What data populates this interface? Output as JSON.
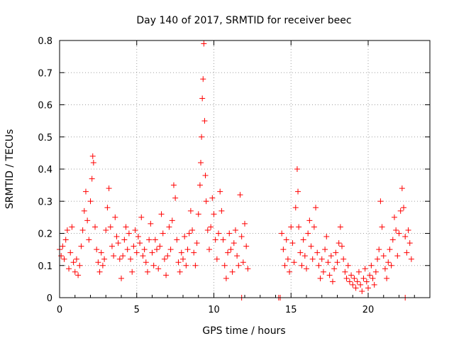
{
  "chart_data": {
    "type": "scatter",
    "title": "Day 140 of 2017, SRMTID for receiver beec",
    "xlabel": "GPS time / hours",
    "ylabel": "SRMTID / TECUs",
    "xlim": [
      0,
      24
    ],
    "ylim": [
      0,
      0.8
    ],
    "x_ticks": [
      0,
      5,
      10,
      15,
      20
    ],
    "y_ticks": [
      0,
      0.1,
      0.2,
      0.3,
      0.4,
      0.5,
      0.6,
      0.7,
      0.8
    ],
    "y_tick_labels": [
      "0",
      "0.1",
      "0.2",
      "0.3",
      "0.4",
      "0.5",
      "0.6",
      "0.7",
      "0.8"
    ],
    "grid": true,
    "marker": "+",
    "color": "#ff0000",
    "series": [
      {
        "name": "SRMTID",
        "points": [
          [
            0.0,
            0.15
          ],
          [
            0.1,
            0.13
          ],
          [
            0.2,
            0.16
          ],
          [
            0.3,
            0.12
          ],
          [
            0.4,
            0.18
          ],
          [
            0.5,
            0.21
          ],
          [
            0.6,
            0.09
          ],
          [
            0.7,
            0.14
          ],
          [
            0.8,
            0.22
          ],
          [
            0.9,
            0.11
          ],
          [
            1.0,
            0.08
          ],
          [
            1.1,
            0.12
          ],
          [
            1.2,
            0.07
          ],
          [
            1.3,
            0.1
          ],
          [
            1.4,
            0.16
          ],
          [
            1.5,
            0.21
          ],
          [
            1.6,
            0.27
          ],
          [
            1.7,
            0.33
          ],
          [
            1.8,
            0.24
          ],
          [
            1.9,
            0.18
          ],
          [
            2.0,
            0.3
          ],
          [
            2.1,
            0.37
          ],
          [
            2.15,
            0.44
          ],
          [
            2.2,
            0.42
          ],
          [
            2.3,
            0.22
          ],
          [
            2.4,
            0.15
          ],
          [
            2.5,
            0.11
          ],
          [
            2.6,
            0.08
          ],
          [
            2.7,
            0.14
          ],
          [
            2.8,
            0.1
          ],
          [
            2.9,
            0.12
          ],
          [
            3.0,
            0.21
          ],
          [
            3.1,
            0.28
          ],
          [
            3.2,
            0.34
          ],
          [
            3.3,
            0.22
          ],
          [
            3.4,
            0.16
          ],
          [
            3.5,
            0.13
          ],
          [
            3.6,
            0.25
          ],
          [
            3.7,
            0.19
          ],
          [
            3.8,
            0.17
          ],
          [
            3.9,
            0.12
          ],
          [
            4.0,
            0.06
          ],
          [
            4.1,
            0.13
          ],
          [
            4.2,
            0.18
          ],
          [
            4.3,
            0.22
          ],
          [
            4.4,
            0.15
          ],
          [
            4.5,
            0.2
          ],
          [
            4.6,
            0.12
          ],
          [
            4.7,
            0.08
          ],
          [
            4.8,
            0.16
          ],
          [
            4.9,
            0.21
          ],
          [
            5.0,
            0.14
          ],
          [
            5.1,
            0.19
          ],
          [
            5.2,
            0.17
          ],
          [
            5.3,
            0.25
          ],
          [
            5.4,
            0.13
          ],
          [
            5.5,
            0.15
          ],
          [
            5.6,
            0.11
          ],
          [
            5.7,
            0.08
          ],
          [
            5.8,
            0.18
          ],
          [
            5.9,
            0.23
          ],
          [
            6.0,
            0.14
          ],
          [
            6.1,
            0.1
          ],
          [
            6.2,
            0.18
          ],
          [
            6.3,
            0.15
          ],
          [
            6.4,
            0.09
          ],
          [
            6.5,
            0.16
          ],
          [
            6.6,
            0.26
          ],
          [
            6.7,
            0.2
          ],
          [
            6.8,
            0.12
          ],
          [
            6.9,
            0.07
          ],
          [
            7.0,
            0.13
          ],
          [
            7.1,
            0.22
          ],
          [
            7.2,
            0.15
          ],
          [
            7.3,
            0.24
          ],
          [
            7.4,
            0.35
          ],
          [
            7.5,
            0.31
          ],
          [
            7.6,
            0.18
          ],
          [
            7.7,
            0.11
          ],
          [
            7.8,
            0.08
          ],
          [
            7.9,
            0.14
          ],
          [
            8.0,
            0.12
          ],
          [
            8.1,
            0.19
          ],
          [
            8.2,
            0.1
          ],
          [
            8.3,
            0.15
          ],
          [
            8.4,
            0.2
          ],
          [
            8.5,
            0.27
          ],
          [
            8.6,
            0.21
          ],
          [
            8.7,
            0.14
          ],
          [
            8.8,
            0.1
          ],
          [
            8.9,
            0.17
          ],
          [
            9.0,
            0.26
          ],
          [
            9.1,
            0.35
          ],
          [
            9.15,
            0.42
          ],
          [
            9.2,
            0.5
          ],
          [
            9.25,
            0.62
          ],
          [
            9.3,
            0.68
          ],
          [
            9.35,
            0.79
          ],
          [
            9.4,
            0.55
          ],
          [
            9.45,
            0.38
          ],
          [
            9.5,
            0.3
          ],
          [
            9.6,
            0.21
          ],
          [
            9.7,
            0.15
          ],
          [
            9.8,
            0.22
          ],
          [
            9.9,
            0.31
          ],
          [
            10.0,
            0.26
          ],
          [
            10.1,
            0.18
          ],
          [
            10.2,
            0.12
          ],
          [
            10.3,
            0.2
          ],
          [
            10.4,
            0.33
          ],
          [
            10.5,
            0.27
          ],
          [
            10.6,
            0.18
          ],
          [
            10.7,
            0.1
          ],
          [
            10.8,
            0.06
          ],
          [
            10.9,
            0.14
          ],
          [
            11.0,
            0.2
          ],
          [
            11.1,
            0.15
          ],
          [
            11.2,
            0.08
          ],
          [
            11.3,
            0.17
          ],
          [
            11.4,
            0.21
          ],
          [
            11.5,
            0.13
          ],
          [
            11.6,
            0.1
          ],
          [
            11.7,
            0.32
          ],
          [
            11.8,
            0.19
          ],
          [
            11.9,
            0.11
          ],
          [
            12.0,
            0.23
          ],
          [
            12.1,
            0.16
          ],
          [
            12.2,
            0.09
          ],
          [
            11.8,
            0.0
          ],
          [
            14.2,
            0.0
          ],
          [
            14.3,
            0.0
          ],
          [
            14.4,
            0.2
          ],
          [
            14.5,
            0.15
          ],
          [
            14.6,
            0.1
          ],
          [
            14.7,
            0.18
          ],
          [
            14.8,
            0.12
          ],
          [
            14.9,
            0.08
          ],
          [
            15.0,
            0.22
          ],
          [
            15.1,
            0.17
          ],
          [
            15.2,
            0.11
          ],
          [
            15.3,
            0.28
          ],
          [
            15.4,
            0.4
          ],
          [
            15.45,
            0.33
          ],
          [
            15.5,
            0.22
          ],
          [
            15.6,
            0.14
          ],
          [
            15.7,
            0.1
          ],
          [
            15.8,
            0.18
          ],
          [
            15.9,
            0.13
          ],
          [
            16.0,
            0.09
          ],
          [
            16.1,
            0.2
          ],
          [
            16.2,
            0.24
          ],
          [
            16.3,
            0.16
          ],
          [
            16.4,
            0.12
          ],
          [
            16.5,
            0.22
          ],
          [
            16.6,
            0.28
          ],
          [
            16.7,
            0.14
          ],
          [
            16.8,
            0.1
          ],
          [
            16.9,
            0.06
          ],
          [
            17.0,
            0.12
          ],
          [
            17.1,
            0.08
          ],
          [
            17.2,
            0.15
          ],
          [
            17.3,
            0.19
          ],
          [
            17.4,
            0.11
          ],
          [
            17.5,
            0.07
          ],
          [
            17.6,
            0.13
          ],
          [
            17.7,
            0.05
          ],
          [
            17.8,
            0.09
          ],
          [
            17.9,
            0.14
          ],
          [
            18.0,
            0.11
          ],
          [
            18.1,
            0.17
          ],
          [
            18.2,
            0.22
          ],
          [
            18.3,
            0.16
          ],
          [
            18.4,
            0.12
          ],
          [
            18.5,
            0.08
          ],
          [
            18.6,
            0.06
          ],
          [
            18.7,
            0.1
          ],
          [
            18.8,
            0.05
          ],
          [
            18.9,
            0.07
          ],
          [
            19.0,
            0.04
          ],
          [
            19.1,
            0.06
          ],
          [
            19.2,
            0.03
          ],
          [
            19.3,
            0.05
          ],
          [
            19.4,
            0.08
          ],
          [
            19.5,
            0.04
          ],
          [
            19.6,
            0.02
          ],
          [
            19.7,
            0.06
          ],
          [
            19.8,
            0.09
          ],
          [
            19.9,
            0.05
          ],
          [
            20.0,
            0.03
          ],
          [
            20.1,
            0.07
          ],
          [
            20.2,
            0.1
          ],
          [
            20.3,
            0.06
          ],
          [
            20.4,
            0.04
          ],
          [
            20.5,
            0.08
          ],
          [
            20.6,
            0.12
          ],
          [
            20.7,
            0.15
          ],
          [
            20.8,
            0.3
          ],
          [
            20.9,
            0.22
          ],
          [
            21.0,
            0.13
          ],
          [
            21.1,
            0.09
          ],
          [
            21.2,
            0.06
          ],
          [
            21.3,
            0.11
          ],
          [
            21.4,
            0.15
          ],
          [
            21.5,
            0.1
          ],
          [
            21.6,
            0.18
          ],
          [
            21.7,
            0.25
          ],
          [
            21.8,
            0.21
          ],
          [
            21.9,
            0.13
          ],
          [
            22.0,
            0.2
          ],
          [
            22.1,
            0.27
          ],
          [
            22.2,
            0.34
          ],
          [
            22.3,
            0.28
          ],
          [
            22.4,
            0.19
          ],
          [
            22.5,
            0.14
          ],
          [
            22.6,
            0.21
          ],
          [
            22.7,
            0.17
          ],
          [
            22.8,
            0.12
          ],
          [
            22.4,
            0.0
          ]
        ]
      }
    ]
  }
}
